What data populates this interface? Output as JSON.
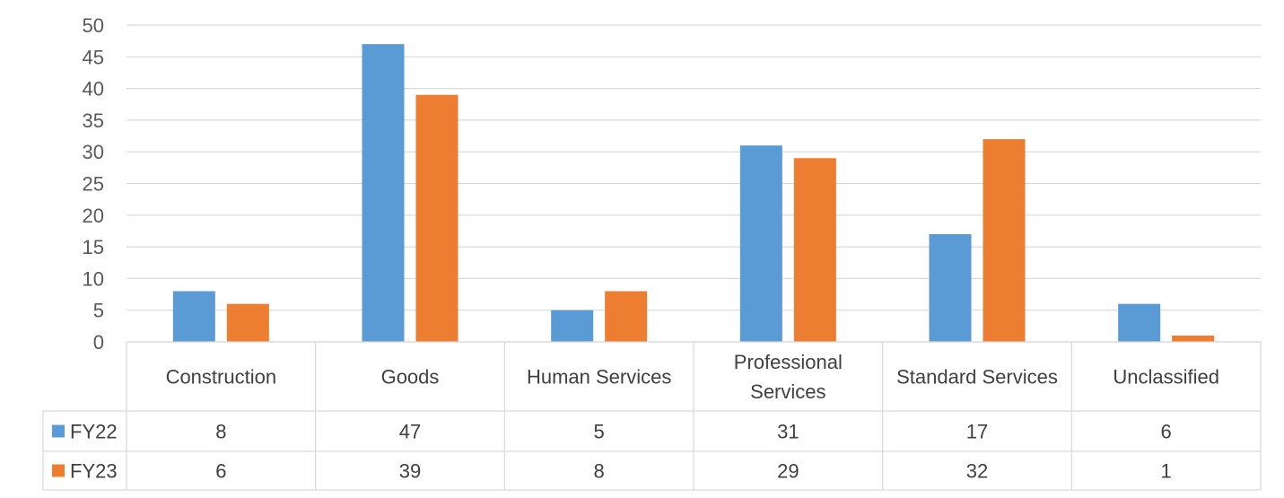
{
  "chart_data": {
    "type": "bar",
    "categories": [
      "Construction",
      "Goods",
      "Human Services",
      "Professional Services",
      "Standard Services",
      "Unclassified"
    ],
    "category_lines": [
      [
        "Construction"
      ],
      [
        "Goods"
      ],
      [
        "Human Services"
      ],
      [
        "Professional",
        "Services"
      ],
      [
        "Standard Services"
      ],
      [
        "Unclassified"
      ]
    ],
    "series": [
      {
        "name": "FY22",
        "color": "#5b9bd5",
        "values": [
          8,
          47,
          5,
          31,
          17,
          6
        ]
      },
      {
        "name": "FY23",
        "color": "#ed7d31",
        "values": [
          6,
          39,
          8,
          29,
          32,
          1
        ]
      }
    ],
    "ylim": [
      0,
      50
    ],
    "yticks": [
      "0",
      "5",
      "10",
      "15",
      "20",
      "25",
      "30",
      "35",
      "40",
      "45",
      "50"
    ],
    "grid": true,
    "legend": "data-table"
  }
}
